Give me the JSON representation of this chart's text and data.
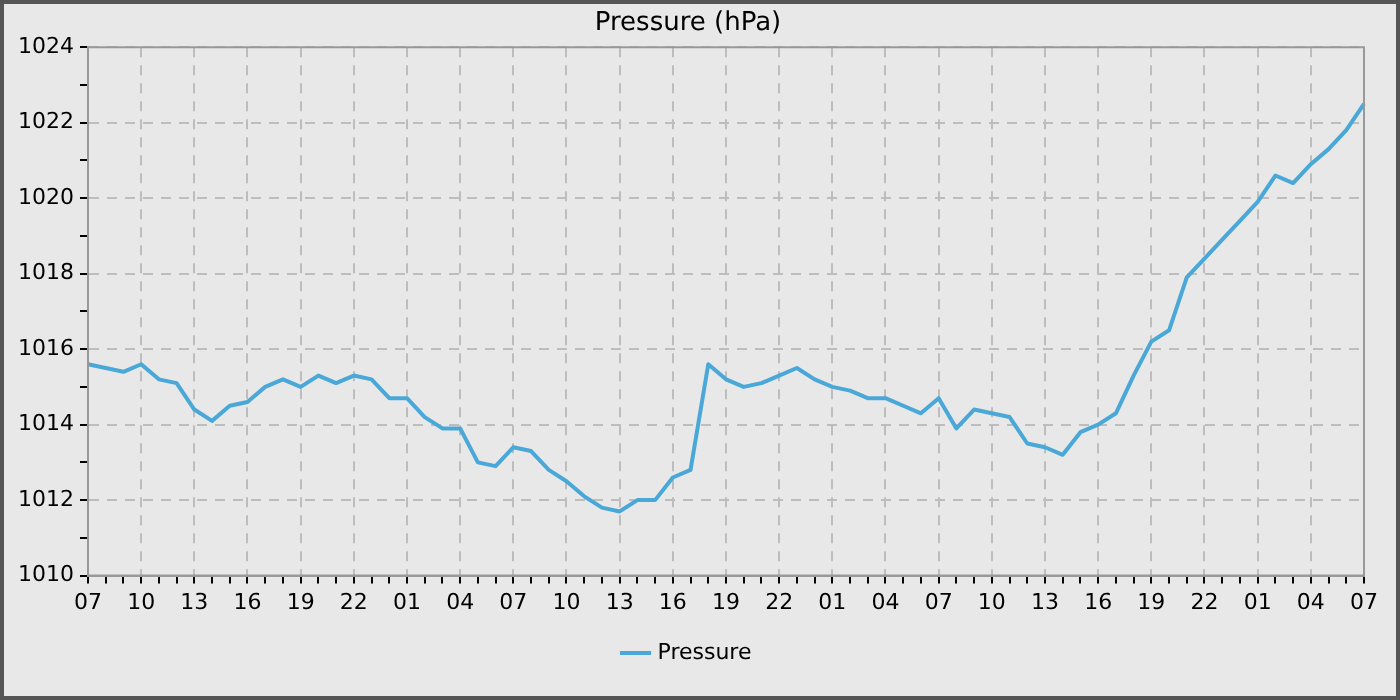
{
  "chart_data": {
    "type": "line",
    "title": "Pressure (hPa)",
    "categories": [
      "07",
      null,
      null,
      "10",
      null,
      null,
      "13",
      null,
      null,
      "16",
      null,
      null,
      "19",
      null,
      null,
      "22",
      null,
      null,
      "01",
      null,
      null,
      "04",
      null,
      null,
      "07",
      null,
      null,
      "10",
      null,
      null,
      "13",
      null,
      null,
      "16",
      null,
      null,
      "19",
      null,
      null,
      "22",
      null,
      null,
      "01",
      null,
      null,
      "04",
      null,
      null,
      "07",
      null,
      null,
      "10",
      null,
      null,
      "13",
      null,
      null,
      "16",
      null,
      null,
      "19",
      null,
      null,
      "22",
      null,
      null,
      "01",
      null,
      null,
      "04",
      null,
      null,
      "07"
    ],
    "series": [
      {
        "name": "Pressure",
        "color": "#4aa8d8",
        "values": [
          1015.6,
          1015.5,
          1015.4,
          1015.6,
          1015.2,
          1015.1,
          1014.4,
          1014.1,
          1014.5,
          1014.6,
          1015.0,
          1015.2,
          1015.0,
          1015.3,
          1015.1,
          1015.3,
          1015.2,
          1014.7,
          1014.7,
          1014.2,
          1013.9,
          1013.9,
          1013.0,
          1012.9,
          1013.4,
          1013.3,
          1012.8,
          1012.5,
          1012.1,
          1011.8,
          1011.7,
          1012.0,
          1012.0,
          1012.6,
          1012.8,
          1015.6,
          1015.2,
          1015.0,
          1015.1,
          1015.3,
          1015.5,
          1015.2,
          1015.0,
          1014.9,
          1014.7,
          1014.7,
          1014.5,
          1014.3,
          1014.7,
          1013.9,
          1014.4,
          1014.3,
          1014.2,
          1013.5,
          1013.4,
          1013.2,
          1013.8,
          1014.0,
          1014.3,
          1015.3,
          1016.2,
          1016.5,
          1017.9,
          1018.4,
          1018.9,
          1019.4,
          1019.9,
          1020.6,
          1020.4,
          1020.9,
          1021.3,
          1021.8,
          1022.5
        ]
      }
    ],
    "ylim": [
      1010,
      1024
    ],
    "yticks": [
      1010,
      {
        "value": 1011,
        "label": null
      },
      1012,
      {
        "value": 1013,
        "label": null
      },
      1014,
      {
        "value": 1015,
        "label": null
      },
      1016,
      {
        "value": 1017,
        "label": null
      },
      1018,
      {
        "value": 1019,
        "label": null
      },
      1020,
      {
        "value": 1021,
        "label": null
      },
      1022,
      {
        "value": 1023,
        "label": null
      },
      1024
    ],
    "grid": true,
    "legend": "bottom",
    "marker": "none",
    "line_style": "solid"
  }
}
